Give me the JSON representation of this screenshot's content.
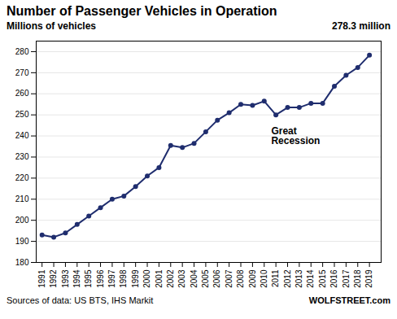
{
  "chart_data": {
    "type": "line",
    "title": "Number of Passenger Vehicles in Operation",
    "subtitle": "Millions of vehicles",
    "x": [
      1991,
      1992,
      1993,
      1994,
      1995,
      1996,
      1997,
      1998,
      1999,
      2000,
      2001,
      2002,
      2003,
      2004,
      2005,
      2006,
      2007,
      2008,
      2009,
      2010,
      2011,
      2012,
      2013,
      2014,
      2015,
      2016,
      2017,
      2018,
      2019
    ],
    "values": [
      193.0,
      192.0,
      194.0,
      198.0,
      202.0,
      206.0,
      210.0,
      211.5,
      216.0,
      221.0,
      225.0,
      235.5,
      234.5,
      236.5,
      242.0,
      247.5,
      251.0,
      255.0,
      254.5,
      256.5,
      250.0,
      253.5,
      253.5,
      255.5,
      255.5,
      263.6,
      268.8,
      272.5,
      278.3
    ],
    "color": "#1f2d6e",
    "marker": "circle",
    "xlim": [
      1990.5,
      2020.0
    ],
    "xticks": [
      1991,
      1992,
      1993,
      1994,
      1995,
      1996,
      1997,
      1998,
      1999,
      2000,
      2001,
      2002,
      2003,
      2004,
      2005,
      2006,
      2007,
      2008,
      2009,
      2010,
      2011,
      2012,
      2013,
      2014,
      2015,
      2016,
      2017,
      2018,
      2019
    ],
    "ylim": [
      180,
      285
    ],
    "yticks": [
      180,
      190,
      200,
      210,
      220,
      230,
      240,
      250,
      260,
      270,
      280
    ],
    "grid": true,
    "annotations": [
      {
        "text": "278.3 million"
      },
      {
        "text": "Great\nRecession",
        "x": 2010.6,
        "y": 244.0
      }
    ],
    "source": "Sources of data: US BTS, IHS Markit",
    "credit": "WOLFSTREET.com"
  }
}
